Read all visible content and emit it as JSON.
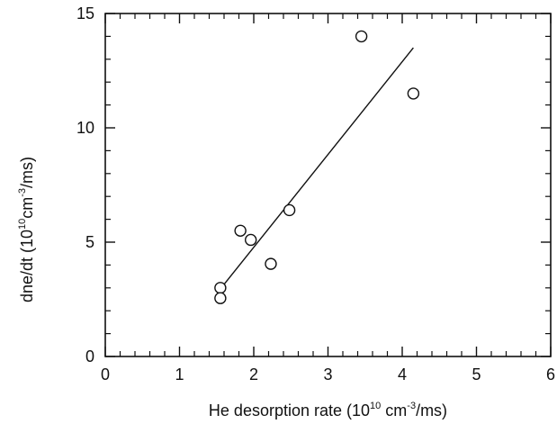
{
  "chart_data": {
    "type": "scatter",
    "xlabel_parts": [
      "He desorption rate (10",
      "10",
      " cm",
      "-3",
      "/ms)"
    ],
    "ylabel_parts": [
      "dne/dt  (10",
      "10",
      "cm",
      "-3",
      "/ms)"
    ],
    "xlim": [
      0,
      6
    ],
    "ylim": [
      0,
      15
    ],
    "x_ticks": [
      0,
      1,
      2,
      3,
      4,
      5,
      6
    ],
    "y_ticks": [
      0,
      5,
      10,
      15
    ],
    "x_minor_step": 0.2,
    "y_minor_step": 1,
    "grid": false,
    "marker": "open-circle",
    "points": [
      {
        "x": 1.55,
        "y": 3.0
      },
      {
        "x": 1.55,
        "y": 2.55
      },
      {
        "x": 1.82,
        "y": 5.5
      },
      {
        "x": 1.96,
        "y": 5.1
      },
      {
        "x": 2.23,
        "y": 4.05
      },
      {
        "x": 2.48,
        "y": 6.4
      },
      {
        "x": 3.45,
        "y": 14.0
      },
      {
        "x": 4.15,
        "y": 11.5
      }
    ],
    "fit_line": {
      "x": [
        1.55,
        4.15
      ],
      "y": [
        2.95,
        13.5
      ]
    }
  }
}
